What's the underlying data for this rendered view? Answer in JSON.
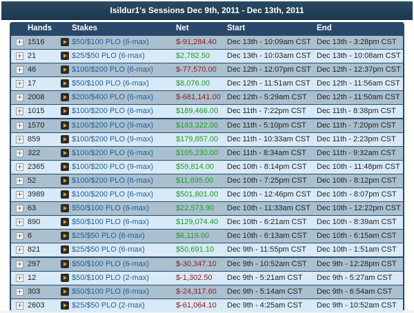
{
  "title": "Isildur1's Sessions Dec 9th, 2011 - Dec 13th, 2011",
  "columns": {
    "hands": "Hands",
    "stakes": "Stakes",
    "net": "Net",
    "start": "Start",
    "end": "End"
  },
  "expander_symbol": "+",
  "colors": {
    "negative": "#8f1b1b",
    "positive": "#1f9a1f",
    "stakes_link": "#1e5f9e"
  },
  "rows": [
    {
      "hands": "1516",
      "stakes": "$50/$100 PLO (6-max)",
      "net": "$-91,284.40",
      "start": "Dec 13th - 10:09am CST",
      "end": "Dec 13th - 3:28pm CST",
      "sign": "neg"
    },
    {
      "hands": "21",
      "stakes": "$25/$50 PLO (6-max)",
      "net": "$2,782.50",
      "start": "Dec 13th - 10:03am CST",
      "end": "Dec 13th - 10:08am CST",
      "sign": "pos"
    },
    {
      "hands": "46",
      "stakes": "$100/$200 PLO (6-max)",
      "net": "$-77,570.00",
      "start": "Dec 12th - 12:07pm CST",
      "end": "Dec 12th - 12:37pm CST",
      "sign": "neg"
    },
    {
      "hands": "17",
      "stakes": "$50/$100 PLO (6-max)",
      "net": "$8,076.00",
      "start": "Dec 12th - 11:51am CST",
      "end": "Dec 12th - 11:56am CST",
      "sign": "pos"
    },
    {
      "hands": "2008",
      "stakes": "$200/$400 PLO (6-max)",
      "net": "$-681,141.00",
      "start": "Dec 12th - 5:29am CST",
      "end": "Dec 12th - 11:50am CST",
      "sign": "neg"
    },
    {
      "hands": "1015",
      "stakes": "$100/$200 PLO (6-max)",
      "net": "$189,466.00",
      "start": "Dec 11th - 7:22pm CST",
      "end": "Dec 11th - 8:38pm CST",
      "sign": "pos"
    },
    {
      "hands": "1570",
      "stakes": "$100/$200 PLO (9-max)",
      "net": "$183,322.00",
      "start": "Dec 11th - 5:10pm CST",
      "end": "Dec 11th - 7:20pm CST",
      "sign": "pos"
    },
    {
      "hands": "859",
      "stakes": "$100/$200 PLO (9-max)",
      "net": "$179,857.00",
      "start": "Dec 11th - 10:33am CST",
      "end": "Dec 11th - 2:23pm CST",
      "sign": "pos"
    },
    {
      "hands": "322",
      "stakes": "$100/$200 PLO (6-max)",
      "net": "$105,230.00",
      "start": "Dec 11th - 8:34am CST",
      "end": "Dec 11th - 9:32am CST",
      "sign": "pos"
    },
    {
      "hands": "2365",
      "stakes": "$100/$200 PLO (9-max)",
      "net": "$59,814.00",
      "start": "Dec 10th - 8:14pm CST",
      "end": "Dec 10th - 11:48pm CST",
      "sign": "pos"
    },
    {
      "hands": "52",
      "stakes": "$100/$200 PLO (6-max)",
      "net": "$11,695.00",
      "start": "Dec 10th - 7:25pm CST",
      "end": "Dec 10th - 8:12pm CST",
      "sign": "pos"
    },
    {
      "hands": "3989",
      "stakes": "$100/$200 PLO (6-max)",
      "net": "$501,801.00",
      "start": "Dec 10th - 12:46pm CST",
      "end": "Dec 10th - 8:07pm CST",
      "sign": "pos"
    },
    {
      "hands": "63",
      "stakes": "$50/$100 PLO (6-max)",
      "net": "$22,573.90",
      "start": "Dec 10th - 11:33am CST",
      "end": "Dec 10th - 12:22pm CST",
      "sign": "pos"
    },
    {
      "hands": "890",
      "stakes": "$50/$100 PLO (6-max)",
      "net": "$129,074.40",
      "start": "Dec 10th - 6:21am CST",
      "end": "Dec 10th - 8:39am CST",
      "sign": "pos"
    },
    {
      "hands": "6",
      "stakes": "$25/$50 PLO (6-max)",
      "net": "$6,119.00",
      "start": "Dec 10th - 6:13am CST",
      "end": "Dec 10th - 6:15am CST",
      "sign": "pos"
    },
    {
      "hands": "821",
      "stakes": "$25/$50 PLO (6-max)",
      "net": "$50,691.10",
      "start": "Dec 9th - 11:55pm CST",
      "end": "Dec 10th - 1:51am CST",
      "sign": "pos"
    },
    {
      "hands": "297",
      "stakes": "$50/$100 PLO (6-max)",
      "net": "$-30,347.10",
      "start": "Dec 9th - 10:52am CST",
      "end": "Dec 9th - 12:28pm CST",
      "sign": "neg"
    },
    {
      "hands": "12",
      "stakes": "$50/$100 PLO (2-max)",
      "net": "$-1,302.50",
      "start": "Dec 9th - 5:21am CST",
      "end": "Dec 9th - 5:27am CST",
      "sign": "neg"
    },
    {
      "hands": "303",
      "stakes": "$50/$100 PLO (6-max)",
      "net": "$-24,317.60",
      "start": "Dec 9th - 5:14am CST",
      "end": "Dec 9th - 6:54am CST",
      "sign": "neg"
    },
    {
      "hands": "2603",
      "stakes": "$25/$50 PLO (2-max)",
      "net": "$-61,064.10",
      "start": "Dec 9th - 4:25am CST",
      "end": "Dec 9th - 10:52am CST",
      "sign": "neg"
    }
  ]
}
